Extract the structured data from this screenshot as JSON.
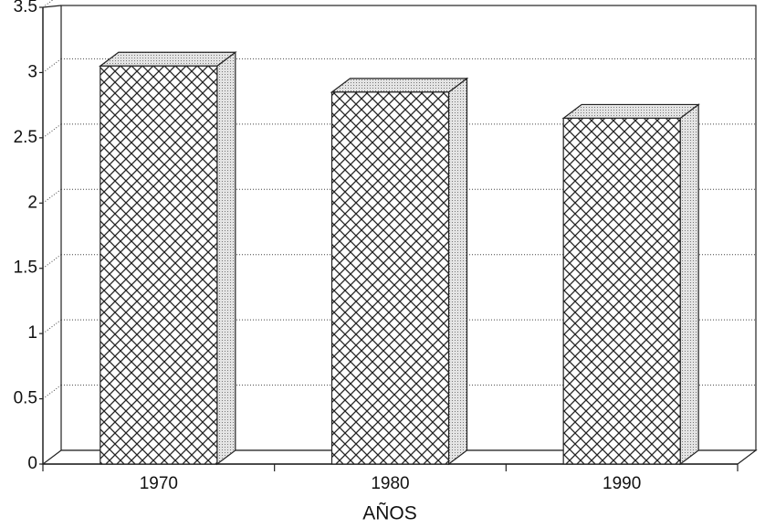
{
  "chart_data": {
    "type": "bar3d",
    "x_label": "AÑOS",
    "categories": [
      "1970",
      "1980",
      "1990"
    ],
    "values": [
      3.05,
      2.85,
      2.65
    ],
    "ylim": [
      0,
      3.5
    ],
    "yticks": [
      0,
      0.5,
      1,
      1.5,
      2,
      2.5,
      3,
      3.5
    ],
    "grid": true
  }
}
